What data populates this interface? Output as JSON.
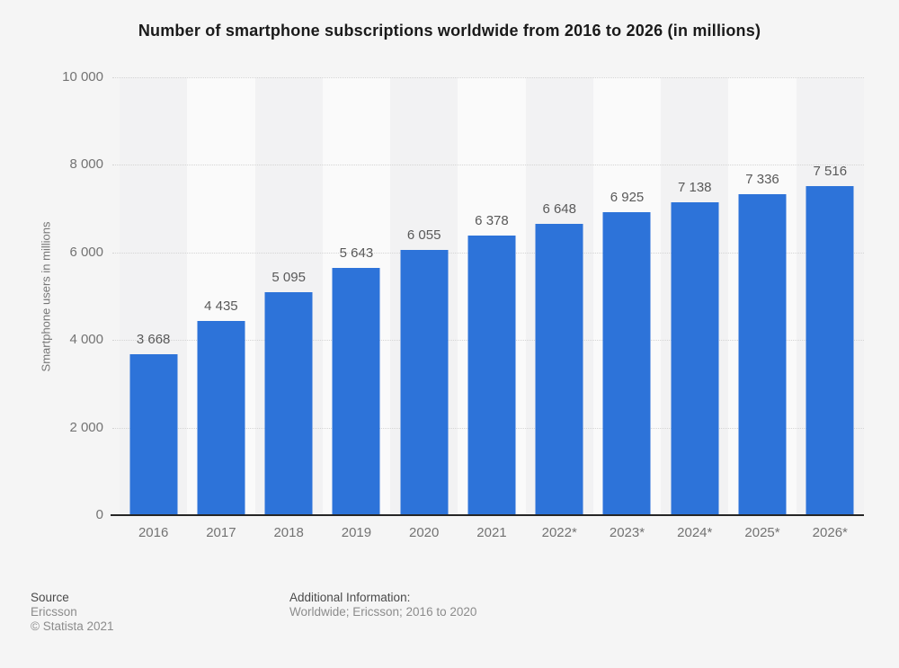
{
  "title": "Number of smartphone subscriptions worldwide from 2016 to 2026 (in millions)",
  "chart_data": {
    "type": "bar",
    "categories": [
      "2016",
      "2017",
      "2018",
      "2019",
      "2020",
      "2021",
      "2022*",
      "2023*",
      "2024*",
      "2025*",
      "2026*"
    ],
    "values": [
      3668,
      4435,
      5095,
      5643,
      6055,
      6378,
      6648,
      6925,
      7138,
      7336,
      7516
    ],
    "value_labels": [
      "3 668",
      "4 435",
      "5 095",
      "5 643",
      "6 055",
      "6 378",
      "6 648",
      "6 925",
      "7 138",
      "7 336",
      "7 516"
    ],
    "title": "Number of smartphone subscriptions worldwide from 2016 to 2026 (in millions)",
    "xlabel": "",
    "ylabel": "Smartphone users in millions",
    "ylim": [
      0,
      10000
    ],
    "ytick_step": 2000,
    "yticks": [
      {
        "value": 10000,
        "label": "10 000"
      },
      {
        "value": 8000,
        "label": "8 000"
      },
      {
        "value": 6000,
        "label": "6 000"
      },
      {
        "value": 4000,
        "label": "4 000"
      },
      {
        "value": 2000,
        "label": "2 000"
      },
      {
        "value": 0,
        "label": "0"
      }
    ],
    "grid": "horizontal-dotted",
    "legend": "none",
    "colors": {
      "bar": "#2d73d9",
      "background": "#f5f5f5",
      "band_even": "#f2f2f3",
      "band_odd": "#fafafa",
      "gridline": "#d4d4d4",
      "axis_line": "#262626",
      "value_label": "#595959",
      "tick_label": "#737373"
    }
  },
  "footer": {
    "source_label": "Source",
    "source_value": "Ericsson",
    "copyright": "© Statista 2021",
    "additional_info_label": "Additional Information:",
    "additional_info_value": "Worldwide; Ericsson; 2016 to 2020"
  }
}
